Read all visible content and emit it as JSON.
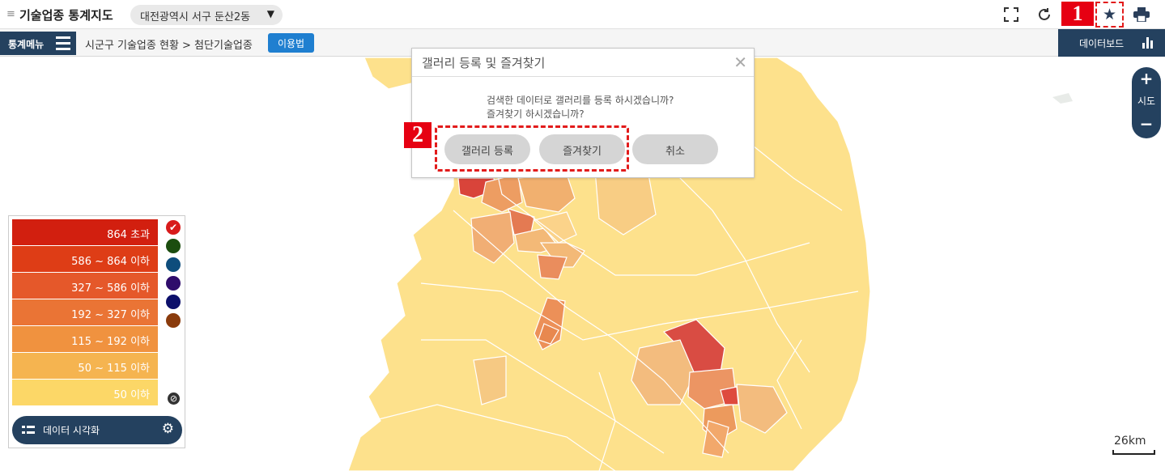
{
  "header": {
    "menu_glyph": "≡",
    "title": "기술업종 통계지도",
    "region": "대전광역시 서구 둔산2동",
    "region_caret": "▼",
    "icons": [
      "fullscreen-icon",
      "refresh-icon",
      "star-icon",
      "print-icon"
    ],
    "step1": "1"
  },
  "subbar": {
    "stat_menu": "통계메뉴",
    "breadcrumb": "시군구 기술업종 현황 > 첨단기술업종",
    "howto": "이용법",
    "dashboard": "데이터보드"
  },
  "zoom": {
    "plus": "+",
    "label": "시도",
    "minus": "−"
  },
  "legend": {
    "ranges": [
      {
        "label": "864 초과",
        "color": "#d21f0f"
      },
      {
        "label": "586 ~ 864 이하",
        "color": "#de3d16"
      },
      {
        "label": "327 ~ 586 이하",
        "color": "#e5582a"
      },
      {
        "label": "192 ~ 327 이하",
        "color": "#ea7435"
      },
      {
        "label": "115 ~ 192 이하",
        "color": "#f0923f"
      },
      {
        "label": "50 ~ 115 이하",
        "color": "#f5b450"
      },
      {
        "label": "50 이하",
        "color": "#fcd767"
      }
    ],
    "palette": [
      "#d81b1b",
      "#1b4d0f",
      "#0e4d7c",
      "#2f0c6b",
      "#0c0f6b",
      "#8a3b0c"
    ],
    "check_glyph": "✔",
    "no_color_glyph": "⊘",
    "viz_button": "데이터 시각화",
    "gear_glyph": "⚙"
  },
  "dialog": {
    "title": "갤러리 등록 및 즐겨찾기",
    "close_glyph": "✕",
    "message_line1": "검색한 데이터로 갤러리를 등록 하시겠습니까?",
    "message_line2": "즐겨찾기 하시겠습니까?",
    "btn_gallery": "갤러리 등록",
    "btn_favorite": "즐겨찾기",
    "btn_cancel": "취소",
    "step2": "2"
  },
  "scale": "26km"
}
